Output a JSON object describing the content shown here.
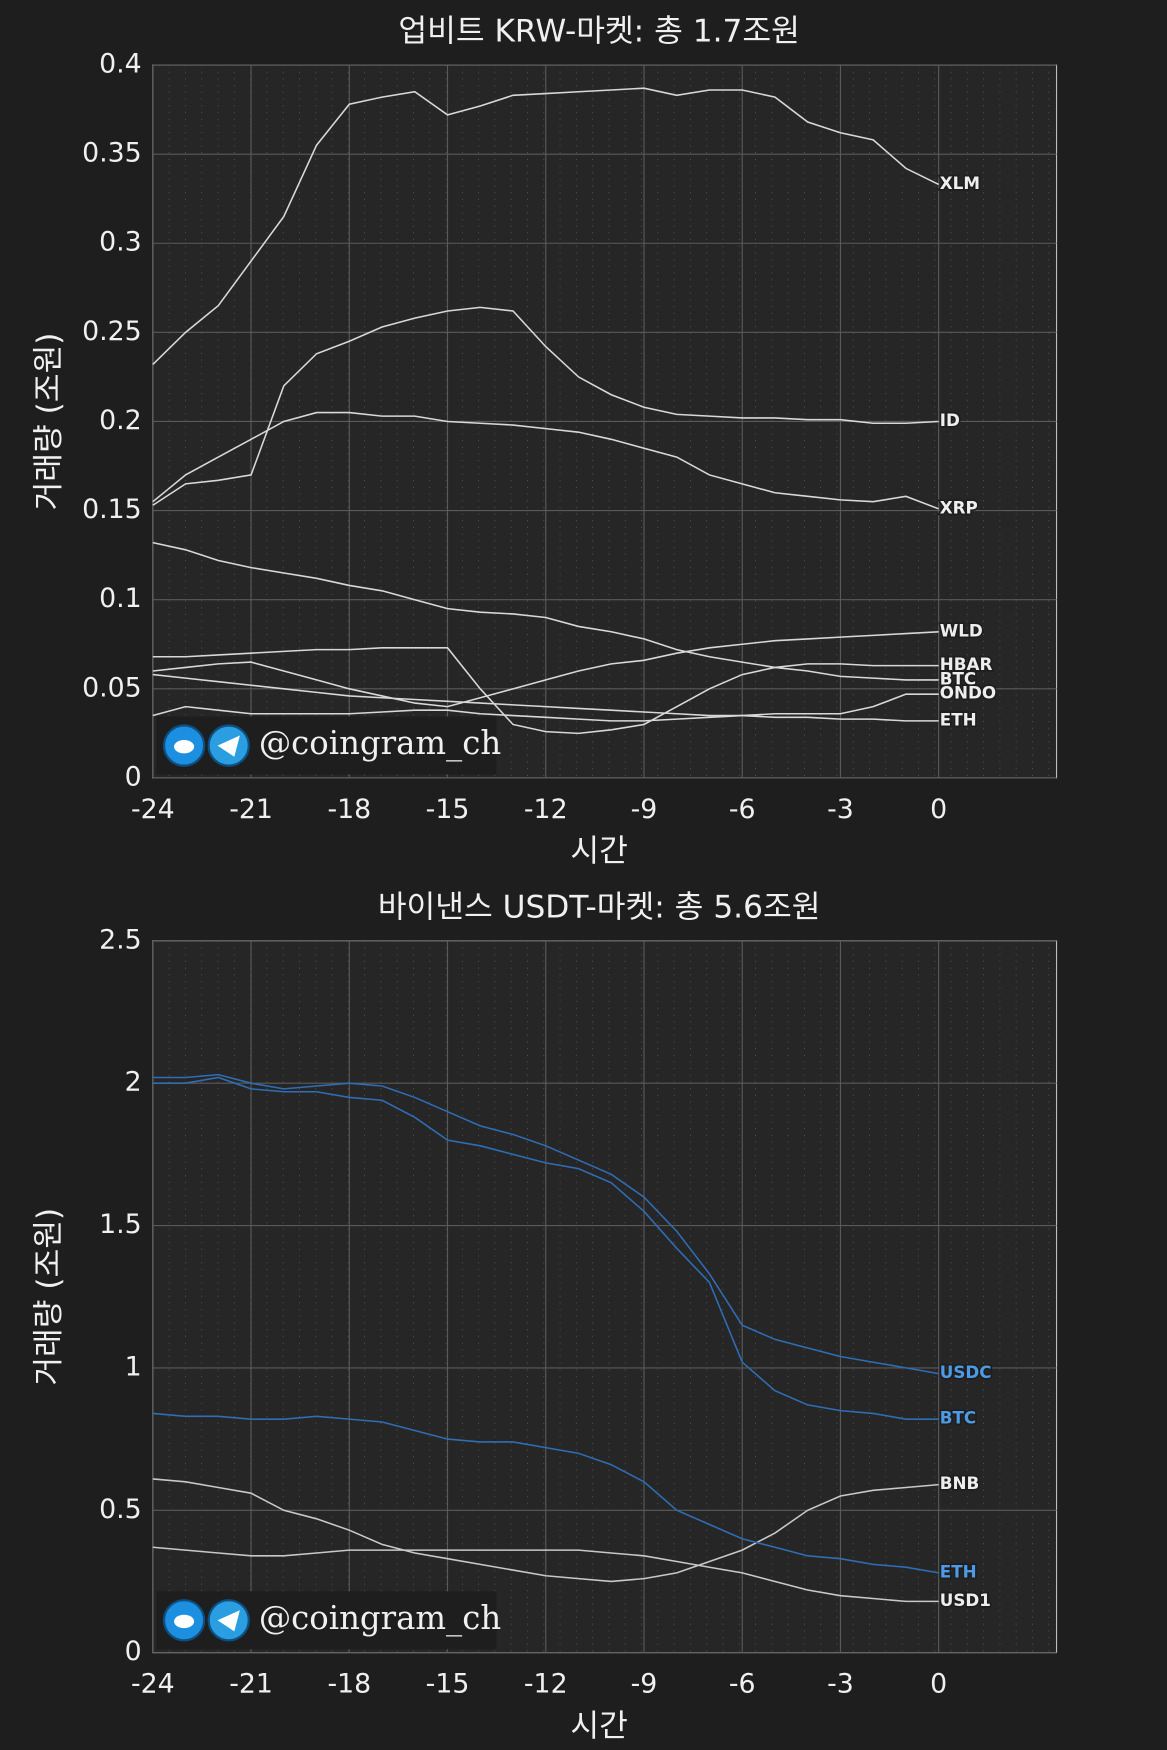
{
  "chart_data": [
    {
      "type": "line",
      "title": "업비트 KRW-마켓: 총 1.7조원",
      "xlabel": "시간",
      "ylabel": "거래량 (조원)",
      "watermark": "@coingram_ch",
      "x": [
        -24,
        -23,
        -22,
        -21,
        -20,
        -19,
        -18,
        -17,
        -16,
        -15,
        -14,
        -13,
        -12,
        -11,
        -10,
        -9,
        -8,
        -7,
        -6,
        -5,
        -4,
        -3,
        -2,
        -1,
        0
      ],
      "xlim": [
        -24,
        3.6
      ],
      "xticks": [
        -24,
        -21,
        -18,
        -15,
        -12,
        -9,
        -6,
        -3,
        0
      ],
      "ylim": [
        0,
        0.4
      ],
      "yticks": [
        0,
        0.05,
        0.1,
        0.15,
        0.2,
        0.25,
        0.3,
        0.35,
        0.4
      ],
      "grid": true,
      "series": [
        {
          "name": "XLM",
          "color": "#d8d8d8",
          "values": [
            0.232,
            0.25,
            0.265,
            0.29,
            0.315,
            0.355,
            0.378,
            0.382,
            0.385,
            0.372,
            0.377,
            0.383,
            0.384,
            0.385,
            0.386,
            0.387,
            0.383,
            0.386,
            0.386,
            0.382,
            0.368,
            0.362,
            0.358,
            0.342,
            0.333
          ]
        },
        {
          "name": "ID",
          "color": "#d8d8d8",
          "values": [
            0.153,
            0.165,
            0.167,
            0.17,
            0.22,
            0.238,
            0.245,
            0.253,
            0.258,
            0.262,
            0.264,
            0.262,
            0.242,
            0.225,
            0.215,
            0.208,
            0.204,
            0.203,
            0.202,
            0.202,
            0.201,
            0.201,
            0.199,
            0.199,
            0.2
          ]
        },
        {
          "name": "XRP",
          "color": "#d8d8d8",
          "values": [
            0.155,
            0.17,
            0.18,
            0.19,
            0.2,
            0.205,
            0.205,
            0.203,
            0.203,
            0.2,
            0.199,
            0.198,
            0.196,
            0.194,
            0.19,
            0.185,
            0.18,
            0.17,
            0.165,
            0.16,
            0.158,
            0.156,
            0.155,
            0.158,
            0.151
          ]
        },
        {
          "name": "WLD",
          "color": "#d8d8d8",
          "values": [
            0.06,
            0.062,
            0.064,
            0.065,
            0.06,
            0.055,
            0.05,
            0.046,
            0.042,
            0.04,
            0.045,
            0.05,
            0.055,
            0.06,
            0.064,
            0.066,
            0.07,
            0.073,
            0.075,
            0.077,
            0.078,
            0.079,
            0.08,
            0.081,
            0.082
          ]
        },
        {
          "name": "HBAR",
          "color": "#d8d8d8",
          "values": [
            0.068,
            0.068,
            0.069,
            0.07,
            0.071,
            0.072,
            0.072,
            0.073,
            0.073,
            0.073,
            0.05,
            0.03,
            0.026,
            0.025,
            0.027,
            0.03,
            0.04,
            0.05,
            0.058,
            0.062,
            0.064,
            0.064,
            0.063,
            0.063,
            0.063
          ]
        },
        {
          "name": "BTC",
          "color": "#d8d8d8",
          "values": [
            0.132,
            0.128,
            0.122,
            0.118,
            0.115,
            0.112,
            0.108,
            0.105,
            0.1,
            0.095,
            0.093,
            0.092,
            0.09,
            0.085,
            0.082,
            0.078,
            0.072,
            0.068,
            0.065,
            0.062,
            0.06,
            0.057,
            0.056,
            0.055,
            0.055
          ]
        },
        {
          "name": "ONDO",
          "color": "#d8d8d8",
          "values": [
            0.035,
            0.04,
            0.038,
            0.036,
            0.036,
            0.036,
            0.036,
            0.037,
            0.038,
            0.038,
            0.036,
            0.035,
            0.034,
            0.033,
            0.032,
            0.032,
            0.033,
            0.034,
            0.035,
            0.036,
            0.036,
            0.036,
            0.04,
            0.047,
            0.047
          ]
        },
        {
          "name": "ETH",
          "color": "#d8d8d8",
          "values": [
            0.058,
            0.056,
            0.054,
            0.052,
            0.05,
            0.048,
            0.046,
            0.045,
            0.044,
            0.043,
            0.042,
            0.041,
            0.04,
            0.039,
            0.038,
            0.037,
            0.036,
            0.035,
            0.035,
            0.034,
            0.034,
            0.033,
            0.033,
            0.032,
            0.032
          ]
        }
      ]
    },
    {
      "type": "line",
      "title": "바이낸스 USDT-마켓: 총 5.6조원",
      "xlabel": "시간",
      "ylabel": "거래량 (조원)",
      "watermark": "@coingram_ch",
      "x": [
        -24,
        -23,
        -22,
        -21,
        -20,
        -19,
        -18,
        -17,
        -16,
        -15,
        -14,
        -13,
        -12,
        -11,
        -10,
        -9,
        -8,
        -7,
        -6,
        -5,
        -4,
        -3,
        -2,
        -1,
        0
      ],
      "xlim": [
        -24,
        3.6
      ],
      "xticks": [
        -24,
        -21,
        -18,
        -15,
        -12,
        -9,
        -6,
        -3,
        0
      ],
      "ylim": [
        0,
        2.5
      ],
      "yticks": [
        0,
        0.5,
        1,
        1.5,
        2,
        2.5
      ],
      "grid": true,
      "series": [
        {
          "name": "USDC",
          "color": "#2f6db5",
          "values": [
            2.02,
            2.02,
            2.03,
            2.0,
            1.98,
            1.99,
            2.0,
            1.99,
            1.95,
            1.9,
            1.85,
            1.82,
            1.78,
            1.73,
            1.68,
            1.6,
            1.48,
            1.33,
            1.15,
            1.1,
            1.07,
            1.04,
            1.02,
            1.0,
            0.98
          ]
        },
        {
          "name": "BTC",
          "color": "#2f6db5",
          "values": [
            2.0,
            2.0,
            2.02,
            1.98,
            1.97,
            1.97,
            1.95,
            1.94,
            1.88,
            1.8,
            1.78,
            1.75,
            1.72,
            1.7,
            1.65,
            1.55,
            1.42,
            1.3,
            1.02,
            0.92,
            0.87,
            0.85,
            0.84,
            0.82,
            0.82
          ]
        },
        {
          "name": "BNB",
          "color": "#c8c8c8",
          "values": [
            0.61,
            0.6,
            0.58,
            0.56,
            0.5,
            0.47,
            0.43,
            0.38,
            0.35,
            0.33,
            0.31,
            0.29,
            0.27,
            0.26,
            0.25,
            0.26,
            0.28,
            0.32,
            0.36,
            0.42,
            0.5,
            0.55,
            0.57,
            0.58,
            0.59
          ]
        },
        {
          "name": "ETH",
          "color": "#2f6db5",
          "values": [
            0.84,
            0.83,
            0.83,
            0.82,
            0.82,
            0.83,
            0.82,
            0.81,
            0.78,
            0.75,
            0.74,
            0.74,
            0.72,
            0.7,
            0.66,
            0.6,
            0.5,
            0.45,
            0.4,
            0.37,
            0.34,
            0.33,
            0.31,
            0.3,
            0.28
          ]
        },
        {
          "name": "USD1",
          "color": "#c8c8c8",
          "values": [
            0.37,
            0.36,
            0.35,
            0.34,
            0.34,
            0.35,
            0.36,
            0.36,
            0.36,
            0.36,
            0.36,
            0.36,
            0.36,
            0.36,
            0.35,
            0.34,
            0.32,
            0.3,
            0.28,
            0.25,
            0.22,
            0.2,
            0.19,
            0.18,
            0.18
          ]
        }
      ]
    }
  ]
}
